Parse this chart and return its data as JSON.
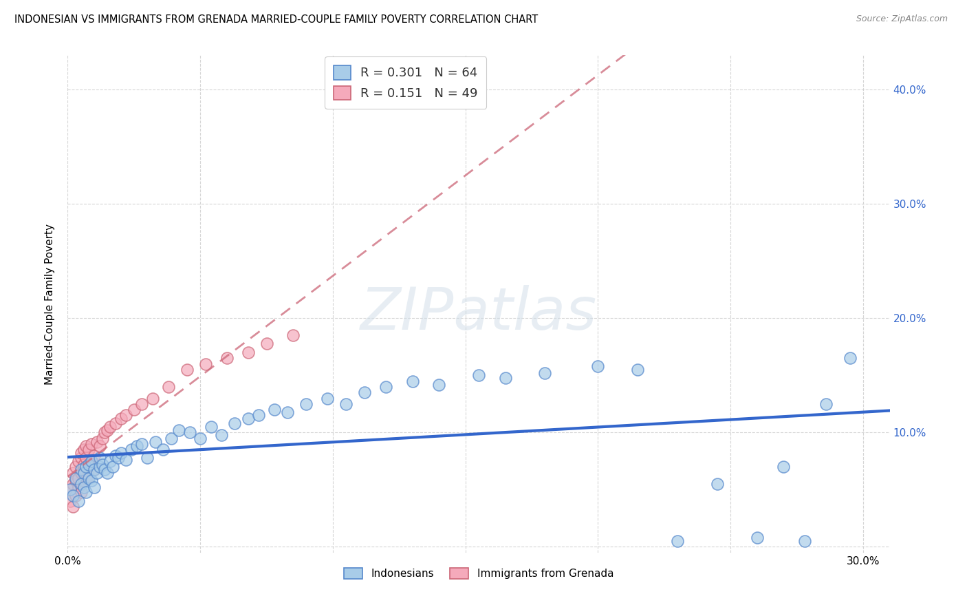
{
  "title": "INDONESIAN VS IMMIGRANTS FROM GRENADA MARRIED-COUPLE FAMILY POVERTY CORRELATION CHART",
  "source": "Source: ZipAtlas.com",
  "ylabel": "Married-Couple Family Poverty",
  "R_blue": "0.301",
  "N_blue": "64",
  "R_pink": "0.151",
  "N_pink": "49",
  "blue_face": "#a8cce8",
  "blue_edge": "#5588cc",
  "blue_line": "#3366cc",
  "pink_face": "#f5aabb",
  "pink_edge": "#cc6677",
  "pink_line": "#cc6677",
  "legend_label_blue": "Indonesians",
  "legend_label_pink": "Immigrants from Grenada",
  "watermark": "ZIPatlas",
  "xlim": [
    0.0,
    0.31
  ],
  "ylim": [
    -0.005,
    0.43
  ],
  "indonesian_x": [
    0.001,
    0.002,
    0.003,
    0.004,
    0.005,
    0.005,
    0.006,
    0.006,
    0.007,
    0.007,
    0.008,
    0.008,
    0.009,
    0.009,
    0.01,
    0.01,
    0.011,
    0.012,
    0.012,
    0.013,
    0.014,
    0.015,
    0.016,
    0.017,
    0.018,
    0.019,
    0.02,
    0.022,
    0.024,
    0.026,
    0.028,
    0.03,
    0.033,
    0.036,
    0.039,
    0.042,
    0.046,
    0.05,
    0.054,
    0.058,
    0.063,
    0.068,
    0.072,
    0.078,
    0.083,
    0.09,
    0.098,
    0.105,
    0.112,
    0.12,
    0.13,
    0.14,
    0.155,
    0.165,
    0.18,
    0.2,
    0.215,
    0.23,
    0.245,
    0.26,
    0.27,
    0.278,
    0.286,
    0.295
  ],
  "indonesian_y": [
    0.05,
    0.045,
    0.06,
    0.04,
    0.055,
    0.068,
    0.052,
    0.065,
    0.048,
    0.07,
    0.06,
    0.072,
    0.058,
    0.075,
    0.052,
    0.068,
    0.065,
    0.07,
    0.078,
    0.072,
    0.068,
    0.065,
    0.075,
    0.07,
    0.08,
    0.078,
    0.082,
    0.076,
    0.085,
    0.088,
    0.09,
    0.078,
    0.092,
    0.085,
    0.095,
    0.102,
    0.1,
    0.095,
    0.105,
    0.098,
    0.108,
    0.112,
    0.115,
    0.12,
    0.118,
    0.125,
    0.13,
    0.125,
    0.135,
    0.14,
    0.145,
    0.142,
    0.15,
    0.148,
    0.152,
    0.158,
    0.155,
    0.005,
    0.055,
    0.008,
    0.07,
    0.005,
    0.125,
    0.165
  ],
  "grenada_x": [
    0.001,
    0.001,
    0.002,
    0.002,
    0.002,
    0.003,
    0.003,
    0.003,
    0.004,
    0.004,
    0.004,
    0.005,
    0.005,
    0.005,
    0.005,
    0.006,
    0.006,
    0.006,
    0.006,
    0.007,
    0.007,
    0.007,
    0.007,
    0.008,
    0.008,
    0.008,
    0.009,
    0.009,
    0.01,
    0.01,
    0.011,
    0.012,
    0.013,
    0.014,
    0.015,
    0.016,
    0.018,
    0.02,
    0.022,
    0.025,
    0.028,
    0.032,
    0.038,
    0.045,
    0.052,
    0.06,
    0.068,
    0.075,
    0.085
  ],
  "grenada_y": [
    0.05,
    0.04,
    0.055,
    0.035,
    0.065,
    0.045,
    0.058,
    0.07,
    0.052,
    0.06,
    0.075,
    0.048,
    0.065,
    0.078,
    0.082,
    0.058,
    0.068,
    0.072,
    0.085,
    0.06,
    0.07,
    0.078,
    0.088,
    0.062,
    0.072,
    0.085,
    0.075,
    0.09,
    0.068,
    0.08,
    0.092,
    0.088,
    0.095,
    0.1,
    0.102,
    0.105,
    0.108,
    0.112,
    0.115,
    0.12,
    0.125,
    0.13,
    0.14,
    0.155,
    0.16,
    0.165,
    0.17,
    0.178,
    0.185
  ]
}
